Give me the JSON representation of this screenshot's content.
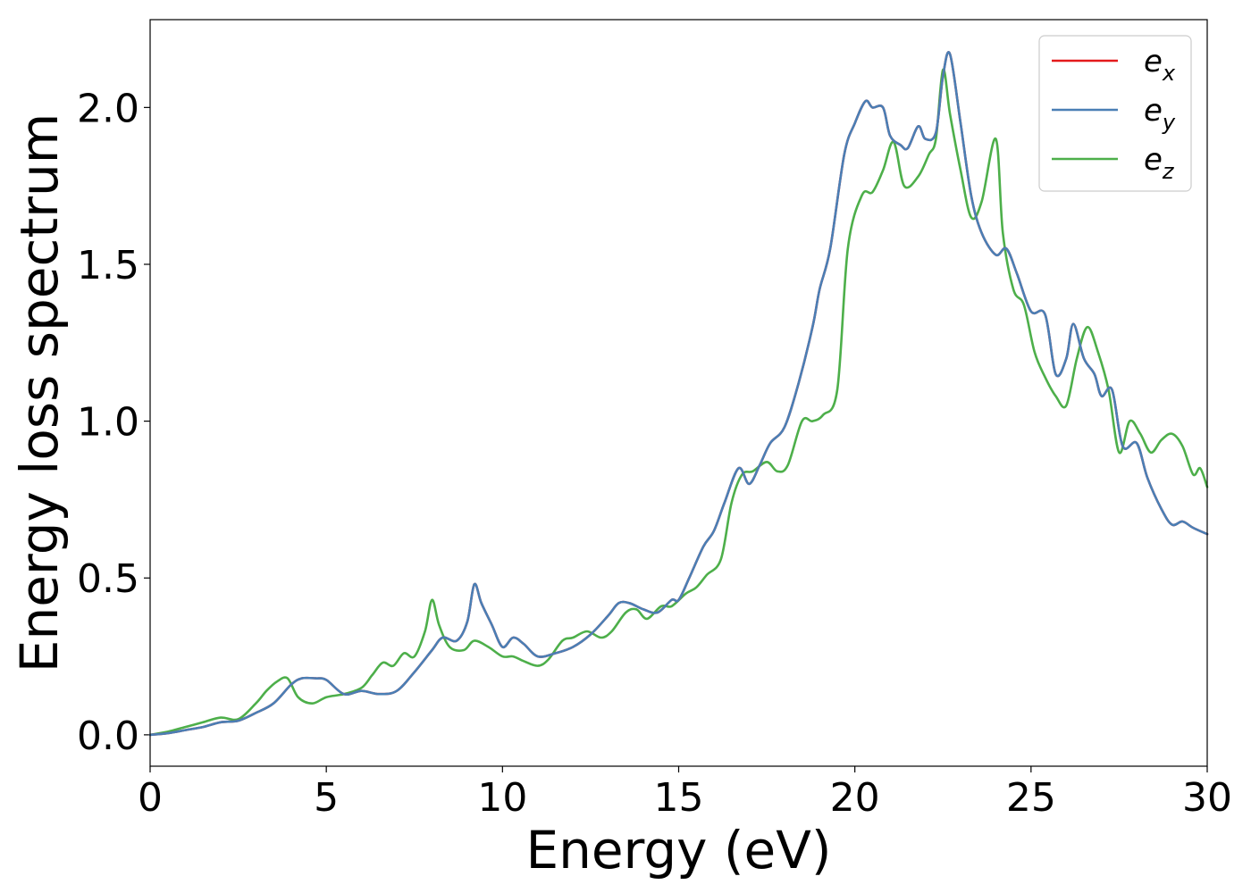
{
  "chart_data": {
    "type": "line",
    "title": "",
    "xlabel": "Energy (eV)",
    "ylabel": "Energy loss spectrum",
    "xlim": [
      0,
      30
    ],
    "ylim": [
      -0.1,
      2.28
    ],
    "xticks": [
      0,
      5,
      10,
      15,
      20,
      25,
      30
    ],
    "xtick_labels": [
      "0",
      "5",
      "10",
      "15",
      "20",
      "25",
      "30"
    ],
    "yticks": [
      0.0,
      0.5,
      1.0,
      1.5,
      2.0
    ],
    "ytick_labels": [
      "0.0",
      "0.5",
      "1.0",
      "1.5",
      "2.0"
    ],
    "grid": false,
    "legend_position": "top-right",
    "series": [
      {
        "name": "e_x",
        "label_main": "e",
        "label_sub": "x",
        "color": "#e41a1c",
        "x": [
          0,
          0.5,
          1,
          1.5,
          2,
          2.5,
          3,
          3.5,
          4,
          4.3,
          4.7,
          5,
          5.5,
          6,
          6.5,
          7,
          7.5,
          8,
          8.3,
          8.7,
          9,
          9.2,
          9.4,
          9.7,
          10,
          10.3,
          10.6,
          11,
          11.5,
          12,
          12.5,
          13,
          13.3,
          13.6,
          14,
          14.4,
          14.8,
          15,
          15.3,
          15.7,
          16,
          16.3,
          16.7,
          17,
          17.3,
          17.6,
          18,
          18.4,
          18.8,
          19,
          19.3,
          19.7,
          20,
          20.3,
          20.5,
          20.8,
          21,
          21.3,
          21.5,
          21.8,
          22,
          22.3,
          22.5,
          22.7,
          23,
          23.3,
          23.6,
          24,
          24.3,
          24.6,
          25,
          25.4,
          25.7,
          26,
          26.2,
          26.5,
          26.8,
          27,
          27.3,
          27.6,
          28,
          28.3,
          28.7,
          29,
          29.3,
          29.6,
          30
        ],
        "y": [
          0.0,
          0.005,
          0.015,
          0.025,
          0.04,
          0.045,
          0.07,
          0.1,
          0.16,
          0.18,
          0.18,
          0.175,
          0.13,
          0.14,
          0.13,
          0.14,
          0.2,
          0.27,
          0.31,
          0.3,
          0.36,
          0.48,
          0.42,
          0.35,
          0.28,
          0.31,
          0.29,
          0.25,
          0.26,
          0.28,
          0.32,
          0.38,
          0.42,
          0.42,
          0.4,
          0.39,
          0.43,
          0.43,
          0.5,
          0.6,
          0.65,
          0.74,
          0.85,
          0.8,
          0.86,
          0.93,
          0.98,
          1.12,
          1.3,
          1.42,
          1.55,
          1.85,
          1.95,
          2.02,
          2.0,
          2.0,
          1.91,
          1.88,
          1.87,
          1.94,
          1.9,
          1.92,
          2.1,
          2.17,
          1.95,
          1.72,
          1.6,
          1.53,
          1.55,
          1.47,
          1.35,
          1.34,
          1.15,
          1.2,
          1.31,
          1.2,
          1.15,
          1.08,
          1.1,
          0.92,
          0.93,
          0.82,
          0.72,
          0.67,
          0.68,
          0.66,
          0.64
        ]
      },
      {
        "name": "e_y",
        "label_main": "e",
        "label_sub": "y",
        "color": "#4a7fb5",
        "x": [
          0,
          0.5,
          1,
          1.5,
          2,
          2.5,
          3,
          3.5,
          4,
          4.3,
          4.7,
          5,
          5.5,
          6,
          6.5,
          7,
          7.5,
          8,
          8.3,
          8.7,
          9,
          9.2,
          9.4,
          9.7,
          10,
          10.3,
          10.6,
          11,
          11.5,
          12,
          12.5,
          13,
          13.3,
          13.6,
          14,
          14.4,
          14.8,
          15,
          15.3,
          15.7,
          16,
          16.3,
          16.7,
          17,
          17.3,
          17.6,
          18,
          18.4,
          18.8,
          19,
          19.3,
          19.7,
          20,
          20.3,
          20.5,
          20.8,
          21,
          21.3,
          21.5,
          21.8,
          22,
          22.3,
          22.5,
          22.7,
          23,
          23.3,
          23.6,
          24,
          24.3,
          24.6,
          25,
          25.4,
          25.7,
          26,
          26.2,
          26.5,
          26.8,
          27,
          27.3,
          27.6,
          28,
          28.3,
          28.7,
          29,
          29.3,
          29.6,
          30
        ],
        "y": [
          0.0,
          0.005,
          0.015,
          0.025,
          0.04,
          0.045,
          0.07,
          0.1,
          0.16,
          0.18,
          0.18,
          0.175,
          0.13,
          0.14,
          0.13,
          0.14,
          0.2,
          0.27,
          0.31,
          0.3,
          0.36,
          0.48,
          0.42,
          0.35,
          0.28,
          0.31,
          0.29,
          0.25,
          0.26,
          0.28,
          0.32,
          0.38,
          0.42,
          0.42,
          0.4,
          0.39,
          0.43,
          0.43,
          0.5,
          0.6,
          0.65,
          0.74,
          0.85,
          0.8,
          0.86,
          0.93,
          0.98,
          1.12,
          1.3,
          1.42,
          1.55,
          1.85,
          1.95,
          2.02,
          2.0,
          2.0,
          1.91,
          1.88,
          1.87,
          1.94,
          1.9,
          1.92,
          2.1,
          2.17,
          1.95,
          1.72,
          1.6,
          1.53,
          1.55,
          1.47,
          1.35,
          1.34,
          1.15,
          1.2,
          1.31,
          1.2,
          1.15,
          1.08,
          1.1,
          0.92,
          0.93,
          0.82,
          0.72,
          0.67,
          0.68,
          0.66,
          0.64
        ]
      },
      {
        "name": "e_z",
        "label_main": "e",
        "label_sub": "z",
        "color": "#4daf4a",
        "x": [
          0,
          0.5,
          1,
          1.5,
          2,
          2.5,
          3,
          3.3,
          3.6,
          3.9,
          4.2,
          4.6,
          5,
          5.5,
          6,
          6.3,
          6.6,
          6.9,
          7.2,
          7.5,
          7.8,
          8.0,
          8.2,
          8.5,
          8.9,
          9.2,
          9.6,
          10,
          10.3,
          10.6,
          11,
          11.3,
          11.7,
          12,
          12.4,
          12.8,
          13.1,
          13.5,
          13.8,
          14.1,
          14.5,
          14.8,
          15.2,
          15.5,
          15.8,
          16.2,
          16.5,
          16.8,
          17.1,
          17.5,
          17.8,
          18.1,
          18.5,
          18.8,
          19.1,
          19.5,
          19.8,
          20.2,
          20.5,
          20.8,
          21.1,
          21.4,
          21.8,
          22.1,
          22.3,
          22.5,
          22.7,
          23,
          23.3,
          23.6,
          24.0,
          24.2,
          24.5,
          24.8,
          25.1,
          25.4,
          25.7,
          26.0,
          26.3,
          26.6,
          26.9,
          27.2,
          27.5,
          27.8,
          28.1,
          28.4,
          28.7,
          29.0,
          29.3,
          29.6,
          29.8,
          30
        ],
        "y": [
          0.0,
          0.01,
          0.025,
          0.04,
          0.055,
          0.05,
          0.1,
          0.14,
          0.17,
          0.18,
          0.12,
          0.1,
          0.12,
          0.13,
          0.15,
          0.19,
          0.23,
          0.22,
          0.26,
          0.25,
          0.33,
          0.43,
          0.35,
          0.28,
          0.27,
          0.3,
          0.28,
          0.25,
          0.25,
          0.235,
          0.22,
          0.24,
          0.3,
          0.31,
          0.33,
          0.31,
          0.33,
          0.39,
          0.4,
          0.37,
          0.41,
          0.41,
          0.45,
          0.47,
          0.51,
          0.56,
          0.74,
          0.83,
          0.84,
          0.87,
          0.84,
          0.86,
          1.0,
          1.0,
          1.02,
          1.1,
          1.55,
          1.72,
          1.73,
          1.8,
          1.89,
          1.75,
          1.78,
          1.85,
          1.9,
          2.12,
          1.98,
          1.8,
          1.65,
          1.7,
          1.9,
          1.6,
          1.42,
          1.37,
          1.22,
          1.14,
          1.08,
          1.05,
          1.2,
          1.3,
          1.22,
          1.1,
          0.9,
          1.0,
          0.96,
          0.9,
          0.94,
          0.96,
          0.92,
          0.83,
          0.85,
          0.79
        ]
      }
    ]
  }
}
